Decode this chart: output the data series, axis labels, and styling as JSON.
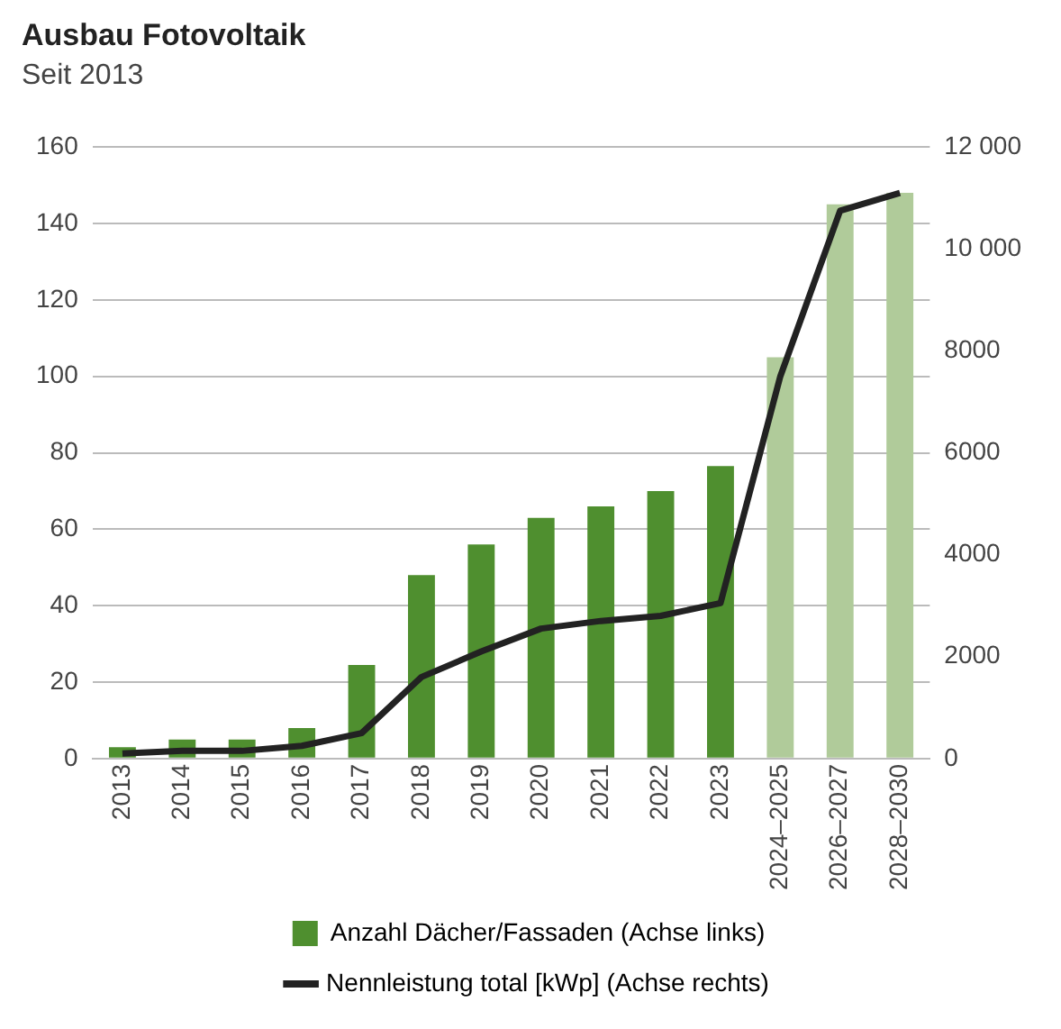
{
  "chart_data": {
    "type": "bar",
    "title": "Ausbau Fotovoltaik",
    "subtitle": "Seit 2013",
    "categories": [
      "2013",
      "2014",
      "2015",
      "2016",
      "2017",
      "2018",
      "2019",
      "2020",
      "2021",
      "2022",
      "2023",
      "2024–2025",
      "2026–2027",
      "2028–2030"
    ],
    "series": [
      {
        "name": "Anzahl Dächer/Fassaden (Achse links)",
        "color": "#4f8f2f",
        "colors": [
          "#4f8f2f",
          "#4f8f2f",
          "#4f8f2f",
          "#4f8f2f",
          "#4f8f2f",
          "#4f8f2f",
          "#4f8f2f",
          "#4f8f2f",
          "#4f8f2f",
          "#4f8f2f",
          "#4f8f2f",
          "#b0cb9a",
          "#b0cb9a",
          "#b0cb9a"
        ],
        "values": [
          3,
          5,
          5,
          8,
          24.5,
          48,
          56,
          63,
          66,
          70,
          76.5,
          105,
          145,
          148
        ]
      },
      {
        "name": "Nennleistung total [kWp] (Achse rechts)",
        "type": "line",
        "axis": "y2",
        "color": "#222222",
        "values": [
          100,
          150,
          150,
          250,
          500,
          1600,
          2100,
          2550,
          2700,
          2800,
          3050,
          7500,
          10750,
          11100
        ]
      }
    ],
    "ylim": [
      0,
      160
    ],
    "yticks": [
      0,
      20,
      40,
      60,
      80,
      100,
      120,
      140,
      160
    ],
    "y2lim": [
      0,
      12000
    ],
    "y2ticks": [
      0,
      2000,
      4000,
      6000,
      {
        "value": 8000,
        "label": "8000"
      },
      {
        "value": 10000,
        "label": "10 000"
      },
      {
        "value": 12000,
        "label": "12 000"
      }
    ],
    "grid": "y",
    "legend": "bottom",
    "marker": "none",
    "line_style": "solid"
  }
}
